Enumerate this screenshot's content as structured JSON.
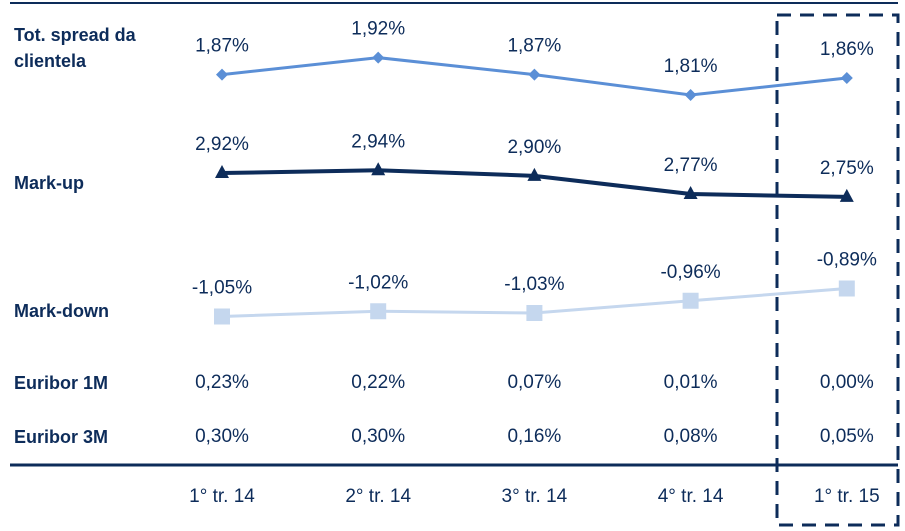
{
  "chart_data": {
    "type": "line",
    "categories": [
      "1° tr. 14",
      "2° tr. 14",
      "3° tr. 14",
      "4° tr. 14",
      "1° tr. 15"
    ],
    "series": [
      {
        "name": "Tot. spread da clientela",
        "color": "#5b8fd6",
        "marker": "diamond",
        "values": [
          1.87,
          1.92,
          1.87,
          1.81,
          1.86
        ],
        "value_labels": [
          "1,87%",
          "1,92%",
          "1,87%",
          "1,81%",
          "1,86%"
        ]
      },
      {
        "name": "Mark-up",
        "color": "#0d2c5a",
        "marker": "triangle",
        "values": [
          2.92,
          2.94,
          2.9,
          2.77,
          2.75
        ],
        "value_labels": [
          "2,92%",
          "2,94%",
          "2,90%",
          "2,77%",
          "2,75%"
        ]
      },
      {
        "name": "Mark-down",
        "color": "#c5d7ee",
        "marker": "square",
        "values": [
          -1.05,
          -1.02,
          -1.03,
          -0.96,
          -0.89
        ],
        "value_labels": [
          "-1,05%",
          "-1,02%",
          "-1,03%",
          "-0,96%",
          "-0,89%"
        ]
      }
    ],
    "rows": [
      {
        "name": "Euribor 1M",
        "values": [
          "0,23%",
          "0,22%",
          "0,07%",
          "0,01%",
          "0,00%"
        ]
      },
      {
        "name": "Euribor 3M",
        "values": [
          "0,30%",
          "0,30%",
          "0,16%",
          "0,08%",
          "0,05%"
        ]
      }
    ]
  }
}
